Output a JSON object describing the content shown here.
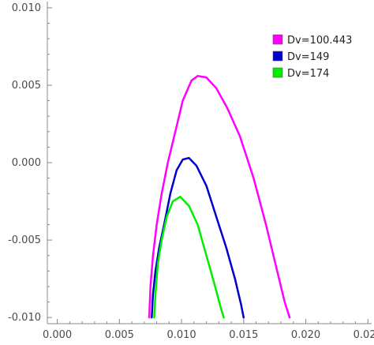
{
  "chart_data": {
    "type": "line",
    "title": "",
    "xlabel": "",
    "ylabel": "",
    "xlim": [
      -0.0008,
      0.0253
    ],
    "ylim": [
      -0.0104,
      0.0104
    ],
    "x_ticks": [
      0.0,
      0.005,
      0.01,
      0.015,
      0.02,
      0.025
    ],
    "x_tick_labels": [
      "0.000",
      "0.005",
      "0.010",
      "0.015",
      "0.020",
      "0.025"
    ],
    "y_ticks": [
      -0.01,
      -0.005,
      0.0,
      0.005,
      0.01
    ],
    "y_tick_labels": [
      "-0.010",
      "-0.005",
      "0.000",
      "0.005",
      "0.010"
    ],
    "grid": false,
    "legend_position": "top-right",
    "series": [
      {
        "name": "Dv=100.443",
        "color": "#ff00ff",
        "points": [
          [
            0.0074,
            -0.01
          ],
          [
            0.0075,
            -0.008
          ],
          [
            0.0077,
            -0.006
          ],
          [
            0.008,
            -0.004
          ],
          [
            0.0084,
            -0.002
          ],
          [
            0.0089,
            0.0
          ],
          [
            0.0095,
            0.002
          ],
          [
            0.0101,
            0.004
          ],
          [
            0.0108,
            0.0053
          ],
          [
            0.0113,
            0.0056
          ],
          [
            0.012,
            0.0055
          ],
          [
            0.0128,
            0.0048
          ],
          [
            0.0137,
            0.0035
          ],
          [
            0.0147,
            0.0017
          ],
          [
            0.0158,
            -0.001
          ],
          [
            0.0168,
            -0.004
          ],
          [
            0.0177,
            -0.007
          ],
          [
            0.0183,
            -0.009
          ],
          [
            0.0187,
            -0.01
          ]
        ]
      },
      {
        "name": "Dv=149",
        "color": "#0000cc",
        "points": [
          [
            0.0076,
            -0.01
          ],
          [
            0.0077,
            -0.0085
          ],
          [
            0.0079,
            -0.007
          ],
          [
            0.0082,
            -0.0055
          ],
          [
            0.0086,
            -0.004
          ],
          [
            0.0091,
            -0.002
          ],
          [
            0.0096,
            -0.0005
          ],
          [
            0.0101,
            0.0002
          ],
          [
            0.0106,
            0.0003
          ],
          [
            0.0112,
            -0.0002
          ],
          [
            0.012,
            -0.0015
          ],
          [
            0.0128,
            -0.0035
          ],
          [
            0.0136,
            -0.0055
          ],
          [
            0.0143,
            -0.0075
          ],
          [
            0.0148,
            -0.0092
          ],
          [
            0.015,
            -0.01
          ]
        ]
      },
      {
        "name": "Dv=174",
        "color": "#00ee00",
        "points": [
          [
            0.0078,
            -0.01
          ],
          [
            0.0079,
            -0.0085
          ],
          [
            0.0081,
            -0.0065
          ],
          [
            0.0084,
            -0.005
          ],
          [
            0.0088,
            -0.0035
          ],
          [
            0.0093,
            -0.0025
          ],
          [
            0.0099,
            -0.0022
          ],
          [
            0.0106,
            -0.0028
          ],
          [
            0.0113,
            -0.004
          ],
          [
            0.012,
            -0.006
          ],
          [
            0.0127,
            -0.008
          ],
          [
            0.0132,
            -0.0095
          ],
          [
            0.0134,
            -0.01
          ]
        ]
      }
    ]
  }
}
